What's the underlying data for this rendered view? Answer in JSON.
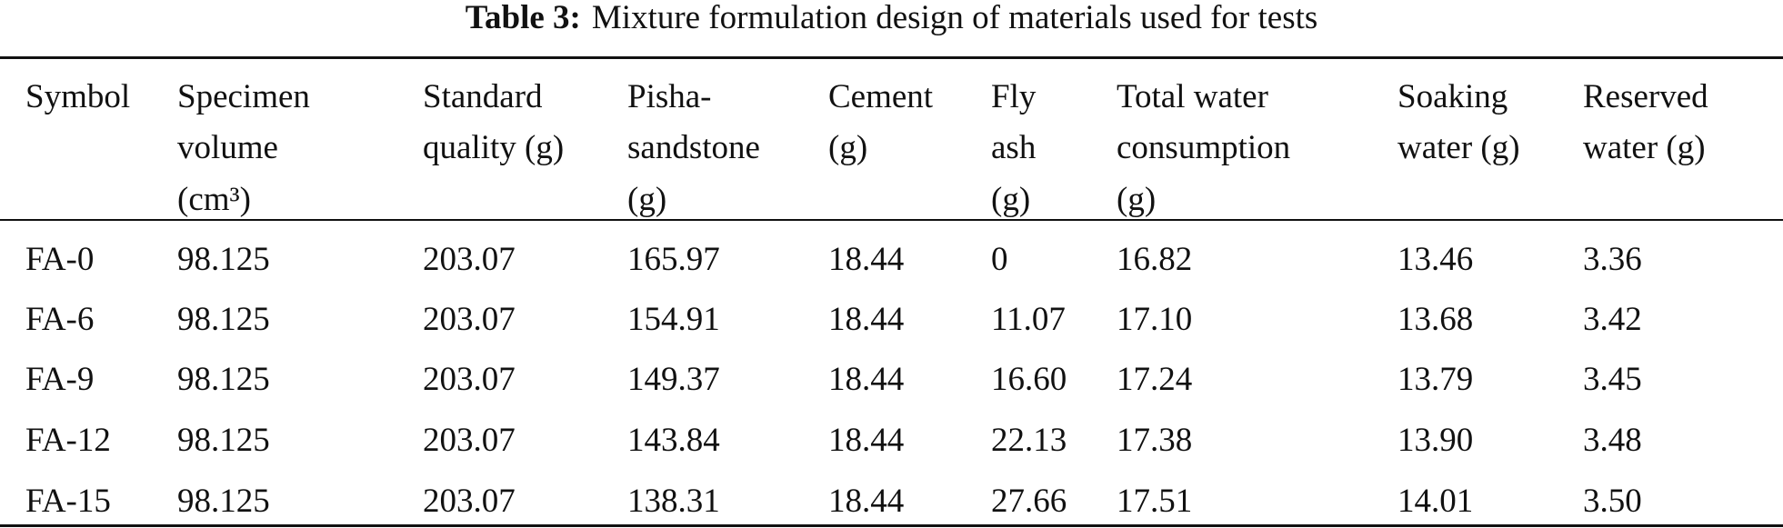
{
  "title": {
    "label": "Table 3:",
    "text": "Mixture formulation design of materials used for tests"
  },
  "table": {
    "headers": [
      [
        "Symbol"
      ],
      [
        "Specimen",
        "volume",
        "(cm³)"
      ],
      [
        "Standard",
        "quality (g)"
      ],
      [
        "Pisha-",
        "sandstone",
        "(g)"
      ],
      [
        "Cement",
        "(g)"
      ],
      [
        "Fly",
        "ash",
        "(g)"
      ],
      [
        "Total water",
        "consumption",
        "(g)"
      ],
      [
        "Soaking",
        "water (g)"
      ],
      [
        "Reserved",
        "water (g)"
      ]
    ],
    "rows": [
      [
        "FA-0",
        "98.125",
        "203.07",
        "165.97",
        "18.44",
        "0",
        "16.82",
        "13.46",
        "3.36"
      ],
      [
        "FA-6",
        "98.125",
        "203.07",
        "154.91",
        "18.44",
        "11.07",
        "17.10",
        "13.68",
        "3.42"
      ],
      [
        "FA-9",
        "98.125",
        "203.07",
        "149.37",
        "18.44",
        "16.60",
        "17.24",
        "13.79",
        "3.45"
      ],
      [
        "FA-12",
        "98.125",
        "203.07",
        "143.84",
        "18.44",
        "22.13",
        "17.38",
        "13.90",
        "3.48"
      ],
      [
        "FA-15",
        "98.125",
        "203.07",
        "138.31",
        "18.44",
        "27.66",
        "17.51",
        "14.01",
        "3.50"
      ]
    ]
  }
}
